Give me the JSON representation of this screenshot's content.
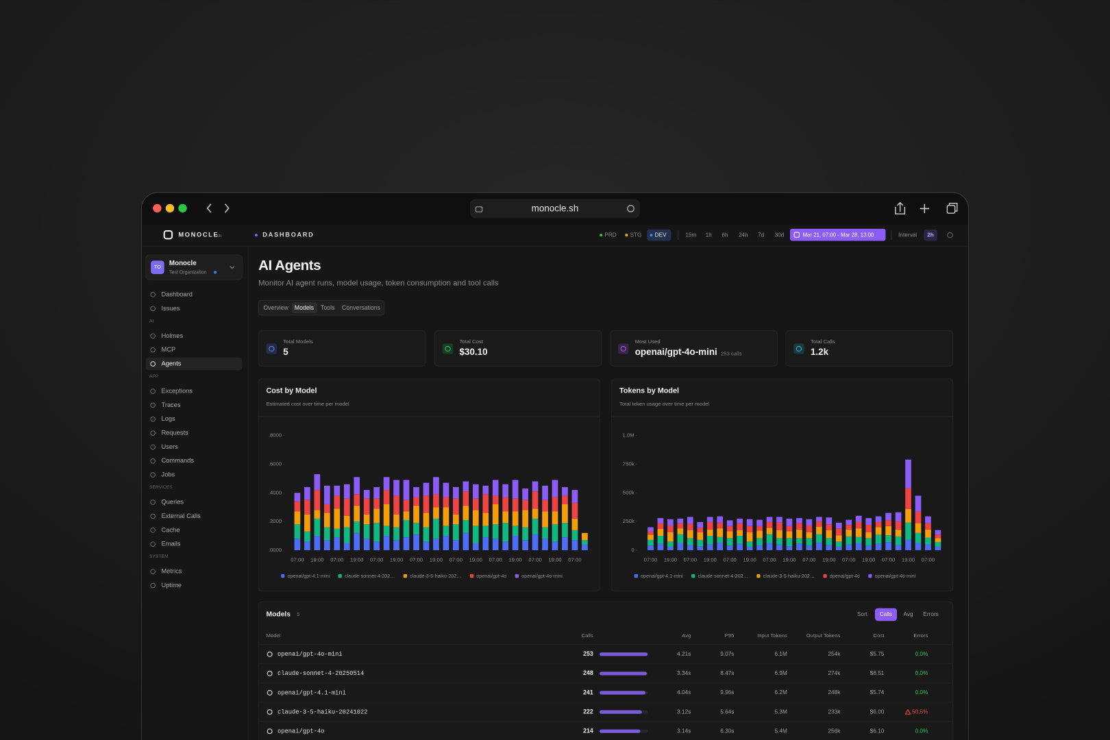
{
  "browser": {
    "url": "monocle.sh"
  },
  "app": {
    "brand": "MONOCLE",
    "brand_suffix": ".sh",
    "section": "DASHBOARD",
    "environments": [
      "PRD",
      "STG",
      "DEV"
    ],
    "ranges": [
      "15m",
      "1h",
      "6h",
      "24h",
      "7d",
      "30d"
    ],
    "date_range": "Mar 21, 07:00 - Mar 28, 13:00",
    "interval_label": "Interval",
    "interval": "2h"
  },
  "org": {
    "initials": "TO",
    "name": "Monocle",
    "subtitle": "Test Organization"
  },
  "nav": [
    {
      "items": [
        "Dashboard",
        "Issues"
      ]
    },
    {
      "heading": "AI",
      "items": [
        "Holmes",
        "MCP",
        "Agents"
      ]
    },
    {
      "heading": "APP",
      "items": [
        "Exceptions",
        "Traces",
        "Logs",
        "Requests",
        "Users",
        "Commands",
        "Jobs"
      ]
    },
    {
      "heading": "SERVICES",
      "items": [
        "Queries",
        "External Calls",
        "Cache",
        "Emails"
      ]
    },
    {
      "heading": "SYSTEM",
      "items": [
        "Metrics",
        "Uptime"
      ]
    }
  ],
  "page": {
    "title": "AI Agents",
    "subtitle": "Monitor AI agent runs, model usage, token consumption and tool calls",
    "tabs": [
      "Overview",
      "Models",
      "Tools",
      "Conversations"
    ]
  },
  "stats": [
    {
      "label": "Total Models",
      "value": "5"
    },
    {
      "label": "Total Cost",
      "value": "$30.10"
    },
    {
      "label": "Most Used",
      "value": "openai/gpt-4o-mini",
      "note": "253 calls"
    },
    {
      "label": "Total Calls",
      "value": "1.2k"
    }
  ],
  "chart_data": [
    {
      "type": "bar",
      "stacked": true,
      "title": "Cost by Model",
      "subtitle": "Estimated cost over time per model",
      "categories": [
        "07:00",
        null,
        "19:00",
        null,
        "07:00",
        null,
        "19:00",
        null,
        "07:00",
        null,
        "19:00",
        null,
        "07:00",
        null,
        "19:00",
        null,
        "07:00",
        null,
        "19:00",
        null,
        "07:00",
        null,
        "19:00",
        null,
        "07:00",
        null,
        "19:00",
        null,
        "07:00",
        null
      ],
      "ylim": [
        0,
        0.8
      ],
      "yticks": [
        {
          "value": 0,
          "label": ".0000"
        },
        {
          "value": 0.2,
          "label": ".2000"
        },
        {
          "value": 0.4,
          "label": ".4000"
        },
        {
          "value": 0.6,
          "label": ".6000"
        },
        {
          "value": 0.8,
          "label": ".8000"
        }
      ],
      "series": [
        {
          "name": "openai/gpt-4.1-mini",
          "color": "#4f6ef7",
          "values": [
            0.08,
            0.06,
            0.1,
            0.07,
            0.09,
            0.05,
            0.12,
            0.08,
            0.06,
            0.1,
            0.07,
            0.09,
            0.11,
            0.06,
            0.08,
            0.1,
            0.07,
            0.12,
            0.05,
            0.09,
            0.08,
            0.06,
            0.1,
            0.07,
            0.11,
            0.08,
            0.06,
            0.09,
            0.07,
            0.04
          ]
        },
        {
          "name": "claude-sonnet-4-202…",
          "color": "#10b981",
          "values": [
            0.1,
            0.07,
            0.12,
            0.09,
            0.06,
            0.11,
            0.08,
            0.1,
            0.13,
            0.07,
            0.09,
            0.12,
            0.08,
            0.1,
            0.14,
            0.07,
            0.11,
            0.09,
            0.12,
            0.08,
            0.1,
            0.13,
            0.07,
            0.09,
            0.11,
            0.08,
            0.12,
            0.1,
            0.07,
            0.03
          ]
        },
        {
          "name": "claude-3-5-haiku-202…",
          "color": "#f59e0b",
          "values": [
            0.09,
            0.12,
            0.06,
            0.1,
            0.14,
            0.08,
            0.11,
            0.07,
            0.1,
            0.15,
            0.09,
            0.06,
            0.12,
            0.1,
            0.08,
            0.13,
            0.07,
            0.1,
            0.11,
            0.09,
            0.14,
            0.08,
            0.1,
            0.12,
            0.07,
            0.11,
            0.09,
            0.13,
            0.08,
            0.05
          ]
        },
        {
          "name": "openai/gpt-4o",
          "color": "#ef4444",
          "values": [
            0.07,
            0.1,
            0.14,
            0.06,
            0.09,
            0.12,
            0.08,
            0.11,
            0.07,
            0.1,
            0.13,
            0.08,
            0.06,
            0.12,
            0.09,
            0.07,
            0.11,
            0.1,
            0.08,
            0.13,
            0.06,
            0.1,
            0.09,
            0.07,
            0.12,
            0.08,
            0.1,
            0.06,
            0.11,
            0
          ]
        },
        {
          "name": "openai/gpt-4o-mini",
          "color": "#8b5cf6",
          "values": [
            0.06,
            0.09,
            0.11,
            0.13,
            0.07,
            0.1,
            0.12,
            0.06,
            0.08,
            0.09,
            0.11,
            0.14,
            0.07,
            0.09,
            0.12,
            0.1,
            0.08,
            0.07,
            0.1,
            0.06,
            0.11,
            0.09,
            0.13,
            0.08,
            0.07,
            0.1,
            0.12,
            0.06,
            0.09,
            0
          ]
        }
      ]
    },
    {
      "type": "bar",
      "stacked": true,
      "title": "Tokens by Model",
      "subtitle": "Total token usage over time per model",
      "categories": [
        "07:00",
        null,
        "19:00",
        null,
        "07:00",
        null,
        "19:00",
        null,
        "07:00",
        null,
        "19:00",
        null,
        "07:00",
        null,
        "19:00",
        null,
        "07:00",
        null,
        "19:00",
        null,
        "07:00",
        null,
        "19:00",
        null,
        "07:00",
        null,
        "19:00",
        null,
        "07:00",
        null
      ],
      "ylim": [
        0,
        1000000
      ],
      "yticks": [
        0,
        {
          "value": 250000,
          "label": "250k"
        },
        {
          "value": 500000,
          "label": "500k"
        },
        {
          "value": 750000,
          "label": "750k"
        },
        {
          "value": 1000000,
          "label": "1.0M"
        }
      ],
      "series": [
        {
          "name": "openai/gpt-4.1-mini",
          "color": "#4f6ef7",
          "values": [
            40000,
            55000,
            30000,
            60000,
            45000,
            35000,
            50000,
            65000,
            40000,
            55000,
            30000,
            45000,
            60000,
            50000,
            35000,
            55000,
            40000,
            65000,
            45000,
            30000,
            50000,
            60000,
            40000,
            55000,
            70000,
            45000,
            90000,
            60000,
            50000,
            30000
          ]
        },
        {
          "name": "claude-sonnet-4-202…",
          "color": "#10b981",
          "values": [
            50000,
            70000,
            45000,
            80000,
            60000,
            55000,
            75000,
            50000,
            65000,
            70000,
            45000,
            60000,
            80000,
            55000,
            70000,
            50000,
            65000,
            75000,
            60000,
            45000,
            70000,
            55000,
            65000,
            80000,
            60000,
            75000,
            150000,
            90000,
            60000,
            40000
          ]
        },
        {
          "name": "claude-3-5-haiku-202…",
          "color": "#f59e0b",
          "values": [
            45000,
            60000,
            80000,
            50000,
            70000,
            65000,
            55000,
            75000,
            60000,
            50000,
            80000,
            65000,
            55000,
            70000,
            60000,
            75000,
            50000,
            65000,
            70000,
            55000,
            60000,
            75000,
            50000,
            65000,
            80000,
            60000,
            120000,
            85000,
            70000,
            35000
          ]
        },
        {
          "name": "openai/gpt-4o",
          "color": "#ef4444",
          "values": [
            30000,
            50000,
            60000,
            45000,
            55000,
            40000,
            65000,
            50000,
            45000,
            60000,
            55000,
            40000,
            50000,
            65000,
            45000,
            55000,
            60000,
            45000,
            50000,
            60000,
            40000,
            55000,
            65000,
            45000,
            50000,
            70000,
            180000,
            100000,
            55000,
            30000
          ]
        },
        {
          "name": "openai/gpt-4o-mini",
          "color": "#8b5cf6",
          "values": [
            35000,
            45000,
            55000,
            40000,
            60000,
            50000,
            45000,
            55000,
            50000,
            40000,
            60000,
            55000,
            45000,
            50000,
            65000,
            45000,
            55000,
            40000,
            60000,
            50000,
            45000,
            55000,
            60000,
            50000,
            65000,
            80000,
            250000,
            140000,
            60000,
            40000
          ]
        }
      ]
    }
  ],
  "models_table": {
    "title": "Models",
    "count": "5",
    "sort_label": "Sort",
    "sort_options": [
      "Calls",
      "Avg",
      "Errors"
    ],
    "columns": [
      "Model",
      "Calls",
      "Avg",
      "P95",
      "Input Tokens",
      "Output Tokens",
      "Cost",
      "Errors"
    ],
    "rows": [
      {
        "model": "openai/gpt-4o-mini",
        "calls": 253,
        "avg": "4.21s",
        "p95": "9.07s",
        "input": "6.1M",
        "output": "254k",
        "cost": "$5.75",
        "errors": "0.0%"
      },
      {
        "model": "claude-sonnet-4-20250514",
        "calls": 248,
        "avg": "3.34s",
        "p95": "8.47s",
        "input": "6.9M",
        "output": "274k",
        "cost": "$6.51",
        "errors": "0.0%"
      },
      {
        "model": "openai/gpt-4.1-mini",
        "calls": 241,
        "avg": "4.04s",
        "p95": "9.96s",
        "input": "6.2M",
        "output": "248k",
        "cost": "$5.74",
        "errors": "0.0%"
      },
      {
        "model": "claude-3-5-haiku-20241022",
        "calls": 222,
        "avg": "3.12s",
        "p95": "5.64s",
        "input": "5.3M",
        "output": "233k",
        "cost": "$6.00",
        "errors": "50.5%"
      },
      {
        "model": "openai/gpt-4o",
        "calls": 214,
        "avg": "3.14s",
        "p95": "6.30s",
        "input": "5.4M",
        "output": "256k",
        "cost": "$6.10",
        "errors": "0.0%"
      }
    ]
  }
}
